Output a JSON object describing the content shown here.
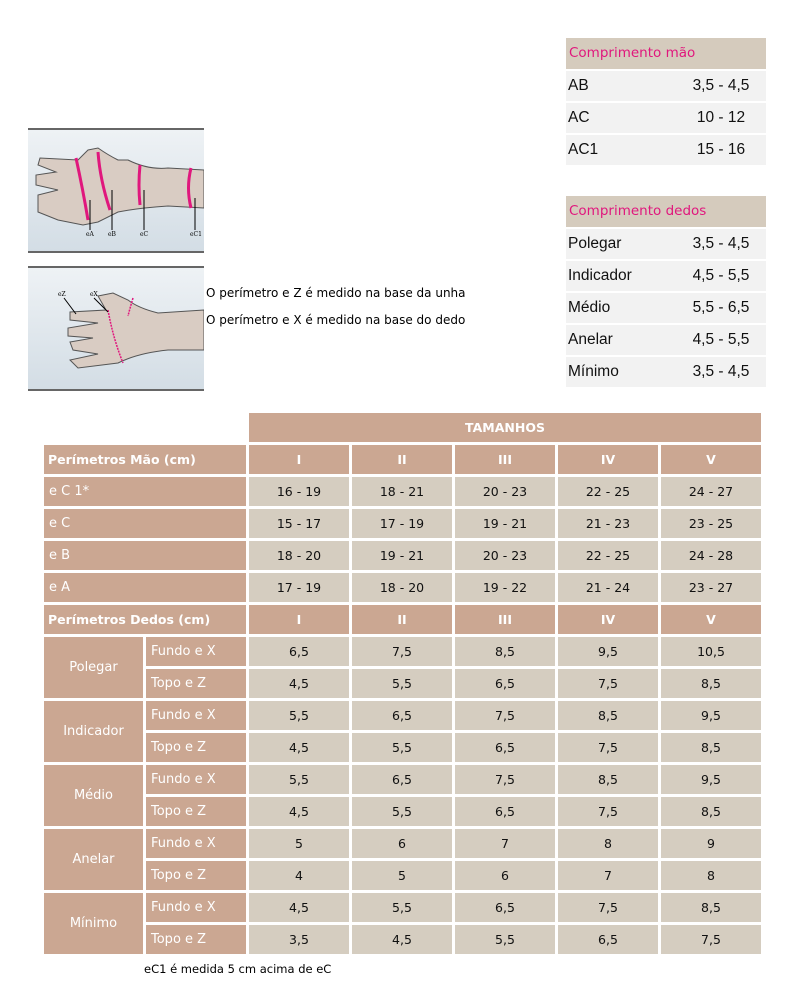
{
  "hand_length": {
    "title": "Comprimento mão",
    "rows": [
      [
        "AB",
        "3,5 - 4,5"
      ],
      [
        "AC",
        "10 - 12"
      ],
      [
        "AC1",
        "15 - 16"
      ]
    ]
  },
  "finger_length": {
    "title": "Comprimento dedos",
    "rows": [
      [
        "Polegar",
        "3,5 - 4,5"
      ],
      [
        "Indicador",
        "4,5 - 5,5"
      ],
      [
        "Médio",
        "5,5 - 6,5"
      ],
      [
        "Anelar",
        "4,5 - 5,5"
      ],
      [
        "Mínimo",
        "3,5 - 4,5"
      ]
    ]
  },
  "diagram_labels": {
    "top": [
      "eA",
      "eB",
      "eC",
      "eC1"
    ],
    "bottom": [
      "eZ",
      "eX"
    ]
  },
  "notes": [
    "O perímetro e Z é medido na base da unha",
    "O perímetro e X é medido na base do dedo"
  ],
  "table": {
    "sizes_title": "TAMANHOS",
    "sizes": [
      "I",
      "II",
      "III",
      "IV",
      "V"
    ],
    "hand_header": "Perímetros Mão (cm)",
    "hand_rows": [
      {
        "label": "e C 1*",
        "values": [
          "16 - 19",
          "18 - 21",
          "20 - 23",
          "22 - 25",
          "24 - 27"
        ]
      },
      {
        "label": "e C",
        "values": [
          "15 - 17",
          "17 - 19",
          "19 - 21",
          "21 - 23",
          "23 - 25"
        ]
      },
      {
        "label": "e B",
        "values": [
          "18 - 20",
          "19 - 21",
          "20 - 23",
          "22 - 25",
          "24 - 28"
        ]
      },
      {
        "label": "e A",
        "values": [
          "17 - 19",
          "18 - 20",
          "19 - 22",
          "21 - 24",
          "23 - 27"
        ]
      }
    ],
    "finger_header": "Perímetros Dedos (cm)",
    "fundo_label": "Fundo e X",
    "topo_label": "Topo e Z",
    "fingers": [
      {
        "name": "Polegar",
        "fundo": [
          "6,5",
          "7,5",
          "8,5",
          "9,5",
          "10,5"
        ],
        "topo": [
          "4,5",
          "5,5",
          "6,5",
          "7,5",
          "8,5"
        ]
      },
      {
        "name": "Indicador",
        "fundo": [
          "5,5",
          "6,5",
          "7,5",
          "8,5",
          "9,5"
        ],
        "topo": [
          "4,5",
          "5,5",
          "6,5",
          "7,5",
          "8,5"
        ]
      },
      {
        "name": "Médio",
        "fundo": [
          "5,5",
          "6,5",
          "7,5",
          "8,5",
          "9,5"
        ],
        "topo": [
          "4,5",
          "5,5",
          "6,5",
          "7,5",
          "8,5"
        ]
      },
      {
        "name": "Anelar",
        "fundo": [
          "5",
          "6",
          "7",
          "8",
          "9"
        ],
        "topo": [
          "4",
          "5",
          "6",
          "7",
          "8"
        ]
      },
      {
        "name": "Mínimo",
        "fundo": [
          "4,5",
          "5,5",
          "6,5",
          "7,5",
          "8,5"
        ],
        "topo": [
          "3,5",
          "4,5",
          "5,5",
          "6,5",
          "7,5"
        ]
      }
    ]
  },
  "footnote": "eC1 é medida 5 cm acima de eC",
  "colors": {
    "header": "#cba792",
    "cell": "#d5cdc0",
    "accent": "#e0177d"
  }
}
